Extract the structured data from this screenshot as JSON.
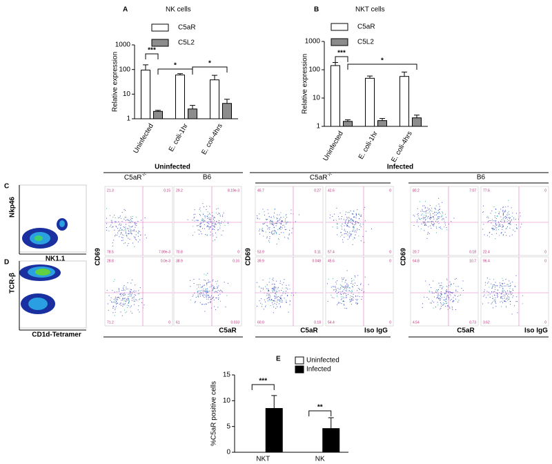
{
  "chart_data": [
    {
      "type": "bar",
      "panel": "A",
      "title": "NK cells",
      "y_label": "Relative expression",
      "log_scale": true,
      "categories": [
        "Uninfected",
        "E. coli-1hr",
        "E. coli-4hrs"
      ],
      "series": [
        {
          "name": "C5aR",
          "color": "#ffffff",
          "values": [
            95,
            60,
            38
          ],
          "errors": [
            60,
            8,
            20
          ]
        },
        {
          "name": "C5L2",
          "color": "#8c8c8c",
          "values": [
            2,
            2.5,
            4.2
          ],
          "errors": [
            0.2,
            1,
            2
          ]
        }
      ],
      "ylim": [
        1,
        1000
      ],
      "yticks": [
        1,
        10,
        100,
        1000
      ],
      "annotations": [
        {
          "text": "***"
        },
        {
          "text": "*"
        },
        {
          "text": "*"
        }
      ]
    },
    {
      "type": "bar",
      "panel": "B",
      "title": "NKT cells",
      "y_label": "Relative expression",
      "log_scale": true,
      "categories": [
        "Uninfected",
        "E. coli-1hr",
        "E. coli-4hrs"
      ],
      "series": [
        {
          "name": "C5aR",
          "color": "#ffffff",
          "values": [
            140,
            50,
            58
          ],
          "errors": [
            40,
            10,
            25
          ]
        },
        {
          "name": "C5L2",
          "color": "#8c8c8c",
          "values": [
            1.5,
            1.6,
            2.0
          ],
          "errors": [
            0.2,
            0.3,
            0.5
          ]
        }
      ],
      "ylim": [
        1,
        1000
      ],
      "yticks": [
        1,
        10,
        100,
        1000
      ],
      "annotations": [
        {
          "text": "***"
        },
        {
          "text": "*"
        }
      ]
    },
    {
      "type": "bar",
      "panel": "E",
      "y_label": "%C5aR positive cells",
      "log_scale": false,
      "categories": [
        "NKT",
        "NK"
      ],
      "series": [
        {
          "name": "Uninfected",
          "color": "#ffffff",
          "values": [
            0,
            0
          ],
          "errors": [
            0,
            0
          ]
        },
        {
          "name": "Infected",
          "color": "#000000",
          "values": [
            8.5,
            4.6
          ],
          "errors": [
            2.5,
            2.1
          ]
        }
      ],
      "ylim": [
        0,
        15
      ],
      "yticks": [
        0,
        5,
        10,
        15
      ],
      "annotations": [
        {
          "text": "***"
        },
        {
          "text": "**"
        }
      ]
    }
  ],
  "flow": {
    "panels": [
      "C",
      "D"
    ],
    "gating": {
      "c_y": "Nkp46",
      "c_x": "NK1.1",
      "d_y": "TCR-β",
      "d_x": "CD1d-Tetramer"
    },
    "groups": {
      "uninfected": "Uninfected",
      "infected": "Infected",
      "ko": "C5aR",
      "ko_sup": "-/-",
      "wt": "B6"
    },
    "axes": {
      "y": "CD69",
      "x": "C5aR",
      "iso": "Iso IgG"
    },
    "quadrants": [
      [
        "21.3",
        "0.15",
        "78.5",
        "7.89e-3"
      ],
      [
        "29.2",
        "8.19e-3",
        "70.8",
        "0"
      ],
      [
        "45.7",
        "0.27",
        "53.9",
        "0.11"
      ],
      [
        "42.6",
        "0",
        "57.4",
        "0"
      ],
      [
        "80.2",
        "7.07",
        "20.7",
        "0.18"
      ],
      [
        "77.6",
        "0",
        "22.4",
        "0"
      ],
      [
        "28.8",
        "0.0e-3",
        "71.2",
        "0"
      ],
      [
        "38.9",
        "0.16",
        "61",
        "0.033"
      ],
      [
        "39.9",
        "0.048",
        "60.0",
        "0.18"
      ],
      [
        "45.6",
        "0",
        "54.4",
        "0"
      ],
      [
        "64.8",
        "10.7",
        "4.54",
        "0.73"
      ],
      [
        "96.4",
        "0",
        "3.62",
        "0"
      ]
    ]
  }
}
